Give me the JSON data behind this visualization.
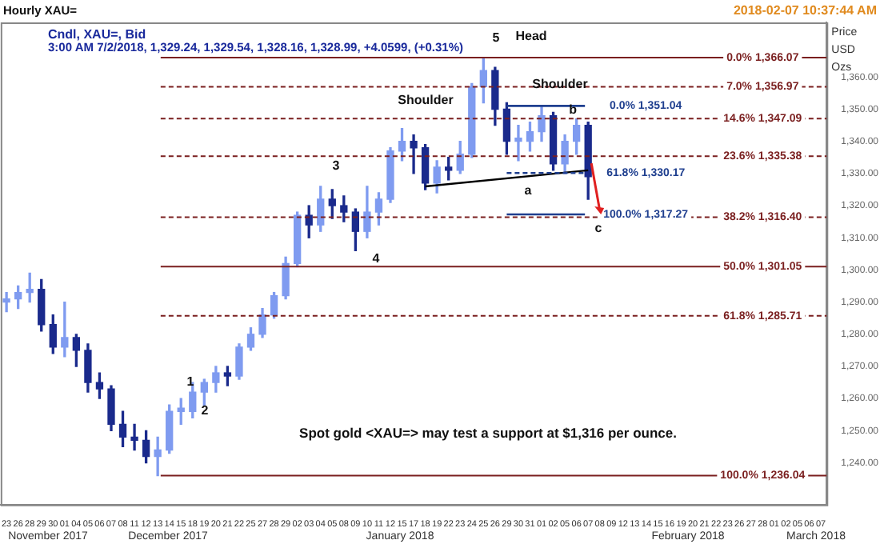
{
  "chart_data": {
    "type": "candlestick",
    "title": "Hourly XAU=",
    "subtitle": "Cndl, XAU=, Bid",
    "ylabel": "Price USD Ozs",
    "colors": [
      "#7f9bf0",
      "#7f9bf0",
      "#7f9bf0",
      "#1a2a8c",
      "#1a2a8c",
      "#7f9bf0",
      "#1a2a8c",
      "#1a2a8c",
      "#1a2a8c",
      "#1a2a8c",
      "#1a2a8c",
      "#1a2a8c",
      "#1a2a8c",
      "#7f9bf0",
      "#7f9bf0",
      "#7f9bf0",
      "#7f9bf0",
      "#7f9bf0",
      "#7f9bf0",
      "#1a2a8c",
      "#7f9bf0",
      "#7f9bf0",
      "#7f9bf0",
      "#7f9bf0",
      "#7f9bf0",
      "#7f9bf0",
      "#1a2a8c",
      "#7f9bf0",
      "#1a2a8c",
      "#1a2a8c",
      "#1a2a8c",
      "#7f9bf0",
      "#7f9bf0",
      "#7f9bf0",
      "#7f9bf0",
      "#1a2a8c",
      "#1a2a8c",
      "#7f9bf0",
      "#1a2a8c",
      "#7f9bf0",
      "#7f9bf0",
      "#7f9bf0",
      "#1a2a8c",
      "#1a2a8c",
      "#7f9bf0",
      "#7f9bf0",
      "#7f9bf0",
      "#1a2a8c",
      "#7f9bf0",
      "#7f9bf0",
      "#1a2a8c",
      null,
      null,
      null,
      null,
      null,
      null,
      null,
      null,
      null,
      null,
      null,
      null,
      null,
      null,
      null,
      null,
      null,
      null,
      null,
      null
    ],
    "categories": [
      "23",
      "26",
      "28",
      "29",
      "30",
      "01",
      "04",
      "05",
      "06",
      "07",
      "08",
      "11",
      "12",
      "13",
      "14",
      "15",
      "18",
      "19",
      "20",
      "21",
      "22",
      "25",
      "27",
      "28",
      "29",
      "02",
      "03",
      "04",
      "05",
      "08",
      "09",
      "10",
      "11",
      "12",
      "15",
      "17",
      "18",
      "19",
      "22",
      "23",
      "24",
      "25",
      "26",
      "29",
      "30",
      "31",
      "01",
      "02",
      "05",
      "06",
      "07",
      "08",
      "09",
      "12",
      "13",
      "14",
      "15",
      "16",
      "19",
      "20",
      "21",
      "22",
      "23",
      "26",
      "27",
      "28",
      "01",
      "02",
      "05",
      "06",
      "07"
    ],
    "ohlc": [
      [
        1290,
        1293,
        1287,
        1291
      ],
      [
        1291,
        1295,
        1288,
        1293
      ],
      [
        1293,
        1299,
        1290,
        1294
      ],
      [
        1294,
        1297,
        1281,
        1283
      ],
      [
        1283,
        1286,
        1274,
        1276
      ],
      [
        1276,
        1290,
        1273,
        1279
      ],
      [
        1279,
        1280,
        1270,
        1275
      ],
      [
        1275,
        1277,
        1262,
        1265
      ],
      [
        1265,
        1268,
        1260,
        1263
      ],
      [
        1263,
        1264,
        1250,
        1252
      ],
      [
        1252,
        1256,
        1245,
        1248
      ],
      [
        1248,
        1252,
        1244,
        1247
      ],
      [
        1247,
        1250,
        1240,
        1242
      ],
      [
        1242,
        1248,
        1236,
        1244
      ],
      [
        1244,
        1258,
        1243,
        1256
      ],
      [
        1256,
        1260,
        1252,
        1257
      ],
      [
        1256,
        1265,
        1254,
        1262
      ],
      [
        1262,
        1266,
        1258,
        1265
      ],
      [
        1265,
        1270,
        1262,
        1268
      ],
      [
        1268,
        1270,
        1264,
        1267
      ],
      [
        1267,
        1277,
        1266,
        1276
      ],
      [
        1276,
        1282,
        1275,
        1280
      ],
      [
        1280,
        1288,
        1279,
        1286
      ],
      [
        1286,
        1293,
        1285,
        1292
      ],
      [
        1292,
        1304,
        1291,
        1302
      ],
      [
        1302,
        1318,
        1301,
        1317
      ],
      [
        1317,
        1320,
        1310,
        1314
      ],
      [
        1314,
        1326,
        1312,
        1322
      ],
      [
        1322,
        1325,
        1316,
        1320
      ],
      [
        1320,
        1323,
        1315,
        1318
      ],
      [
        1318,
        1319,
        1306,
        1312
      ],
      [
        1312,
        1326,
        1310,
        1318
      ],
      [
        1318,
        1324,
        1314,
        1322
      ],
      [
        1322,
        1338,
        1321,
        1337
      ],
      [
        1337,
        1344,
        1334,
        1340
      ],
      [
        1340,
        1342,
        1330,
        1338
      ],
      [
        1338,
        1339,
        1325,
        1327
      ],
      [
        1327,
        1334,
        1324,
        1332
      ],
      [
        1332,
        1335,
        1328,
        1331
      ],
      [
        1331,
        1340,
        1330,
        1336
      ],
      [
        1336,
        1358,
        1335,
        1357
      ],
      [
        1357,
        1366,
        1352,
        1362
      ],
      [
        1362,
        1363,
        1345,
        1350
      ],
      [
        1350,
        1352,
        1336,
        1340
      ],
      [
        1340,
        1345,
        1334,
        1341
      ],
      [
        1340,
        1346,
        1337,
        1343
      ],
      [
        1343,
        1351,
        1340,
        1348
      ],
      [
        1348,
        1349,
        1331,
        1333
      ],
      [
        1333,
        1342,
        1330,
        1340
      ],
      [
        1340,
        1347,
        1336,
        1345
      ],
      [
        1345,
        1346,
        1322,
        1329
      ],
      null,
      null,
      null,
      null,
      null,
      null,
      null,
      null,
      null,
      null,
      null,
      null,
      null,
      null,
      null,
      null,
      null,
      null,
      null,
      null
    ],
    "series": [
      {
        "type": "line",
        "color": "#000000",
        "values": [
          null,
          null,
          null,
          null,
          null,
          null,
          null,
          null,
          null,
          null,
          null,
          null,
          null,
          null,
          null,
          null,
          null,
          null,
          null,
          null,
          null,
          null,
          null,
          null,
          null,
          null,
          null,
          null,
          null,
          null,
          null,
          null,
          null,
          null,
          null,
          null,
          1326,
          null,
          null,
          null,
          null,
          null,
          null,
          null,
          null,
          null,
          null,
          null,
          null,
          null,
          1331,
          null,
          null,
          null,
          null,
          null,
          null,
          null,
          null,
          null,
          null,
          null,
          null,
          null,
          null,
          null,
          null,
          null,
          null,
          null,
          null
        ]
      }
    ],
    "ylim": [
      1227,
      1377
    ],
    "yticks": [
      {
        "value": 1240,
        "label": "1,240.00"
      },
      {
        "value": 1250,
        "label": "1,250.00"
      },
      {
        "value": 1260,
        "label": "1,260.00"
      },
      {
        "value": 1270,
        "label": "1,270.00"
      },
      {
        "value": 1280,
        "label": "1,280.00"
      },
      {
        "value": 1290,
        "label": "1,290.00"
      },
      {
        "value": 1300,
        "label": "1,300.00"
      },
      {
        "value": 1310,
        "label": "1,310.00"
      },
      {
        "value": 1320,
        "label": "1,320.00"
      },
      {
        "value": 1330,
        "label": "1,330.00"
      },
      {
        "value": 1340,
        "label": "1,340.00"
      },
      {
        "value": 1350,
        "label": "1,350.00"
      },
      {
        "value": 1360,
        "label": "1,360.00"
      }
    ],
    "ref_lines": [
      {
        "axis": "y",
        "value": 1366.07,
        "label": "0.0% 1,366.07",
        "color": "#7a1f1f",
        "line_style": "solid"
      },
      {
        "axis": "y",
        "value": 1356.97,
        "label": "7.0% 1,356.97",
        "color": "#7a1f1f",
        "line_style": "dashed"
      },
      {
        "axis": "y",
        "value": 1347.09,
        "label": "14.6% 1,347.09",
        "color": "#7a1f1f",
        "line_style": "dashed"
      },
      {
        "axis": "y",
        "value": 1335.38,
        "label": "23.6% 1,335.38",
        "color": "#7a1f1f",
        "line_style": "dashed"
      },
      {
        "axis": "y",
        "value": 1316.4,
        "label": "38.2% 1,316.40",
        "color": "#7a1f1f",
        "line_style": "dashed"
      },
      {
        "axis": "y",
        "value": 1301.05,
        "label": "50.0% 1,301.05",
        "color": "#7a1f1f",
        "line_style": "solid"
      },
      {
        "axis": "y",
        "value": 1285.71,
        "label": "61.8% 1,285.71",
        "color": "#7a1f1f",
        "line_style": "dashed"
      },
      {
        "axis": "y",
        "value": 1236.04,
        "label": "100.0% 1,236.04",
        "color": "#7a1f1f",
        "line_style": "solid"
      },
      {
        "axis": "y",
        "value": 1351.04,
        "label": "0.0% 1,351.04",
        "color": "#1f3f8f",
        "line_style": "solid"
      },
      {
        "axis": "y",
        "value": 1330.17,
        "label": "61.8% 1,330.17",
        "color": "#1f3f8f",
        "line_style": "dashed"
      },
      {
        "axis": "y",
        "value": 1317.27,
        "label": "100.0% 1,317.27",
        "color": "#1f3f8f",
        "line_style": "solid"
      }
    ],
    "annotations": [
      "3:00 AM 7/2/2018, 1,329.24, 1,329.54, 1,328.16, 1,328.99, +4.0599, (+0.31%)",
      "2018-02-07 10:37:44 AM",
      "Spot gold <XAU=> may test a support at $1,316 per ounce.",
      "November 2017",
      "December 2017",
      "January 2018",
      "February 2018",
      "March 2018",
      "1",
      "2",
      "3",
      "4",
      "Shoulder",
      "5",
      "Head",
      "Shoulder",
      "b",
      {
        "text": "a",
        "y": 1327
      },
      "c"
    ],
    "grid": false,
    "legend": false
  }
}
